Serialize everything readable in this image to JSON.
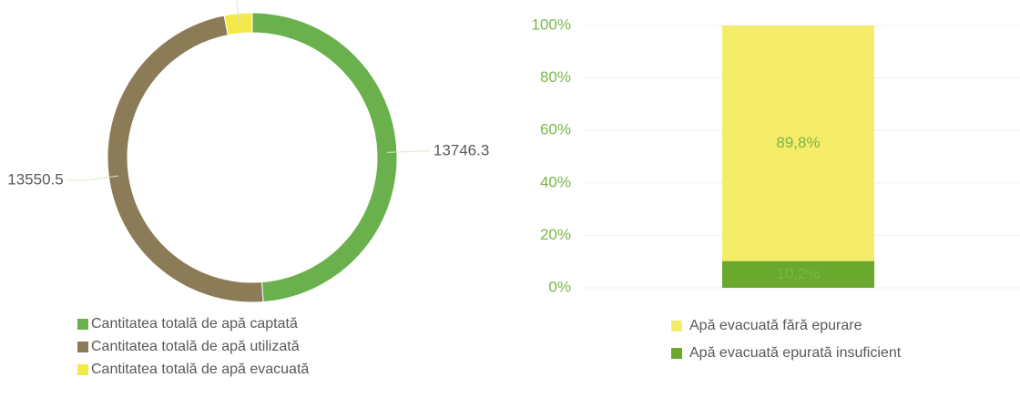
{
  "chart_data": [
    {
      "type": "donut",
      "categories": [
        "Cantitatea totală de apă captată",
        "Cantitatea totală de apă utilizată",
        "Cantitatea totală de apă evacuată"
      ],
      "values": [
        13746.3,
        13550.5,
        877.4
      ],
      "colors": [
        "#6ab04c",
        "#8b7b57",
        "#f3e94a"
      ]
    },
    {
      "type": "stacked_bar_100",
      "categories": [
        null
      ],
      "series": [
        {
          "name": "Apă evacuată epurată insuficient",
          "color": "#6aa92e",
          "values": [
            10.2
          ],
          "value_labels": [
            "10,2%"
          ]
        },
        {
          "name": "Apă evacuată fără epurare",
          "color": "#f5ec6a",
          "values": [
            89.8
          ],
          "value_labels": [
            "89,8%"
          ]
        }
      ],
      "ylim": [
        0,
        100
      ],
      "yticks": [
        {
          "value": 0,
          "label": "0%"
        },
        {
          "value": 20,
          "label": "20%"
        },
        {
          "value": 40,
          "label": "40%"
        },
        {
          "value": 60,
          "label": "60%"
        },
        {
          "value": 80,
          "label": "80%"
        },
        {
          "value": 100,
          "label": "100%"
        }
      ],
      "grid": true
    }
  ]
}
